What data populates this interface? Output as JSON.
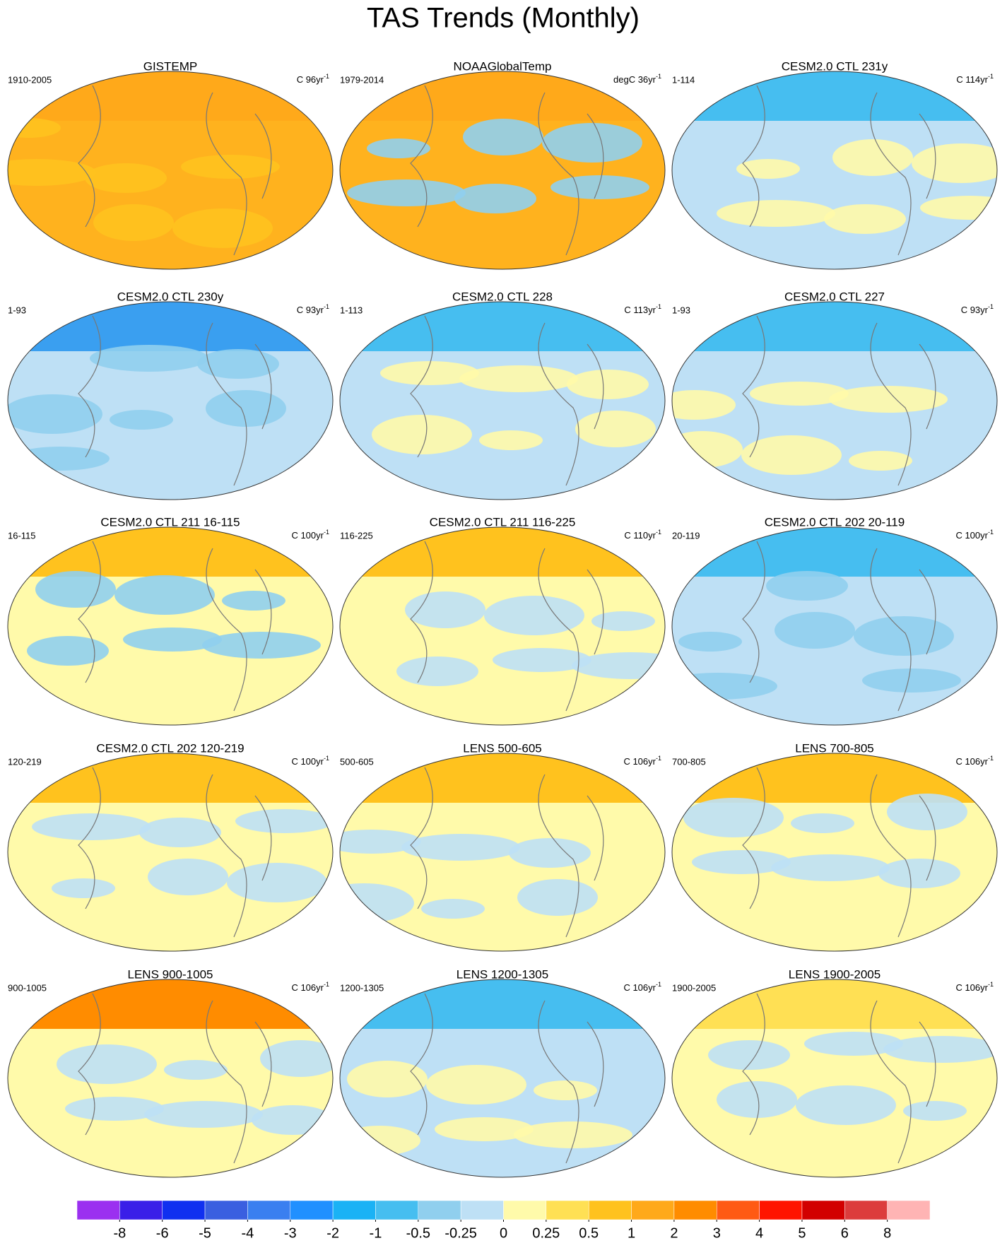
{
  "title": "TAS Trends (Monthly)",
  "panels": [
    {
      "title": "GISTEMP",
      "left": "1910-2005",
      "right": "C 96yr",
      "exponent": "-1"
    },
    {
      "title": "NOAAGlobalTemp",
      "left": "1979-2014",
      "right": "degC 36yr",
      "exponent": "-1"
    },
    {
      "title": "CESM2.0 CTL 231y",
      "left": "1-114",
      "right": "C 114yr",
      "exponent": "-1"
    },
    {
      "title": "CESM2.0 CTL 230y",
      "left": "1-93",
      "right": "C 93yr",
      "exponent": "-1"
    },
    {
      "title": "CESM2.0 CTL 228",
      "left": "1-113",
      "right": "C 113yr",
      "exponent": "-1"
    },
    {
      "title": "CESM2.0 CTL 227",
      "left": "1-93",
      "right": "C 93yr",
      "exponent": "-1"
    },
    {
      "title": "CESM2.0 CTL 211 16-115",
      "left": "16-115",
      "right": "C 100yr",
      "exponent": "-1"
    },
    {
      "title": "CESM2.0 CTL 211 116-225",
      "left": "116-225",
      "right": "C 110yr",
      "exponent": "-1"
    },
    {
      "title": "CESM2.0 CTL 202 20-119",
      "left": "20-119",
      "right": "C 100yr",
      "exponent": "-1"
    },
    {
      "title": "CESM2.0 CTL 202 120-219",
      "left": "120-219",
      "right": "C 100yr",
      "exponent": "-1"
    },
    {
      "title": "LENS 500-605",
      "left": "500-605",
      "right": "C 106yr",
      "exponent": "-1"
    },
    {
      "title": "LENS 700-805",
      "left": "700-805",
      "right": "C 106yr",
      "exponent": "-1"
    },
    {
      "title": "LENS 900-1005",
      "left": "900-1005",
      "right": "C 106yr",
      "exponent": "-1"
    },
    {
      "title": "LENS 1200-1305",
      "left": "1200-1305",
      "right": "C 106yr",
      "exponent": "-1"
    },
    {
      "title": "LENS 1900-2005",
      "left": "1900-2005",
      "right": "C 106yr",
      "exponent": "-1"
    }
  ],
  "colorbar": {
    "colors": [
      "#9b30f0",
      "#3a1fe8",
      "#1030f0",
      "#3a5fe0",
      "#3a7ff0",
      "#2090ff",
      "#1ab2f5",
      "#46bef0",
      "#90cfee",
      "#bee0f5",
      "#fffaaa",
      "#ffe054",
      "#ffc21e",
      "#ffa91a",
      "#ff8c00",
      "#ff5a14",
      "#ff1400",
      "#d20000",
      "#dc3c3c",
      "#ffb4b4"
    ],
    "levels": [
      -8,
      -6,
      -5,
      -4,
      -3,
      -2,
      -1,
      -0.5,
      -0.25,
      0,
      0.25,
      0.5,
      1,
      2,
      3,
      4,
      5,
      6,
      8
    ]
  }
}
